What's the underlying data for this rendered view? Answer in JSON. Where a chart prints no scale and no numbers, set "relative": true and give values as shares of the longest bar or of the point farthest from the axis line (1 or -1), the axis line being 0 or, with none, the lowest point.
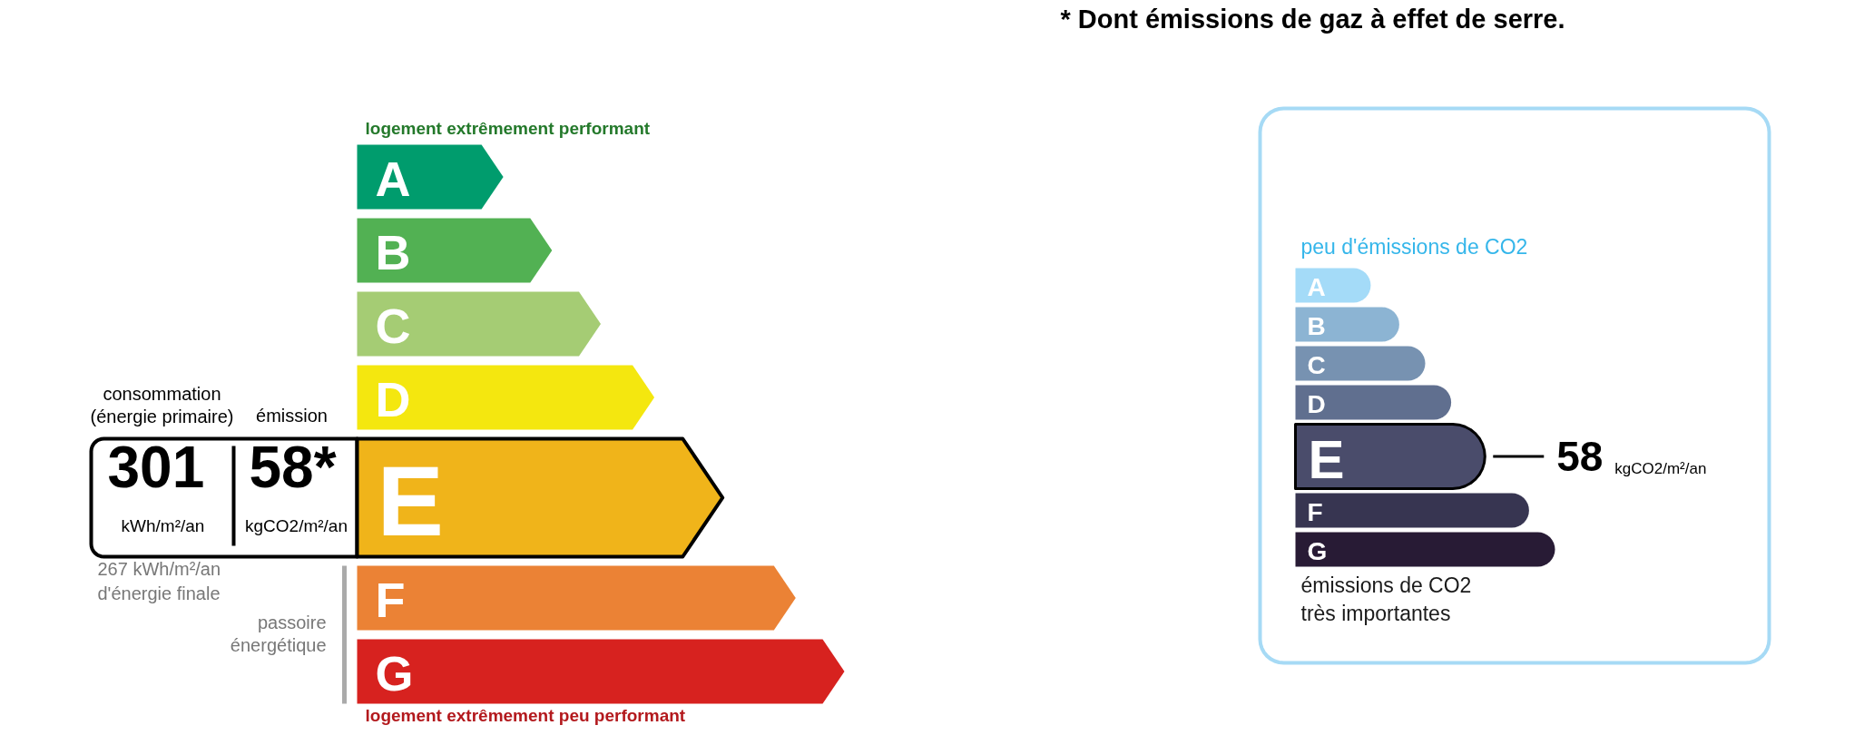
{
  "chart_data": [
    {
      "type": "bar",
      "orientation": "horizontal",
      "relative": true,
      "categories": [
        "A",
        "B",
        "C",
        "D",
        "E",
        "F",
        "G"
      ],
      "values": [
        0.3,
        0.4,
        0.5,
        0.61,
        0.75,
        0.9,
        1.0
      ],
      "colors": [
        "#009c6d",
        "#52b153",
        "#a5cc74",
        "#f4e70f",
        "#f0b41a",
        "#eb8235",
        "#d7221f"
      ],
      "annotations": [
        "logement extrêmement performant",
        "logement extrêmement peu performant",
        "consommation\n(énergie primaire)",
        "émission",
        "267 kWh/m²/an\nd'énergie finale",
        "passoire\nénergétique",
        {
          "text": "301",
          "x": 0,
          "y": "E"
        },
        "kWh/m²/an",
        "58*",
        "kgCO2/m²/an"
      ]
    },
    {
      "type": "bar",
      "orientation": "horizontal",
      "relative": true,
      "categories": [
        "A",
        "B",
        "C",
        "D",
        "E",
        "F",
        "G"
      ],
      "values": [
        0.29,
        0.4,
        0.5,
        0.6,
        0.73,
        0.9,
        1.0
      ],
      "colors": [
        "#a4dbf8",
        "#8cb4d3",
        "#7792b1",
        "#606f8f",
        "#4a4c6b",
        "#373551",
        "#281b35"
      ],
      "annotations": [
        "* Dont émissions de gaz à effet de serre.",
        "peu d'émissions de CO2",
        "émissions de CO2\ntrès importantes",
        {
          "text": "58",
          "x": 0.73,
          "y": "E"
        },
        "kgCO2/m²/an"
      ]
    }
  ]
}
